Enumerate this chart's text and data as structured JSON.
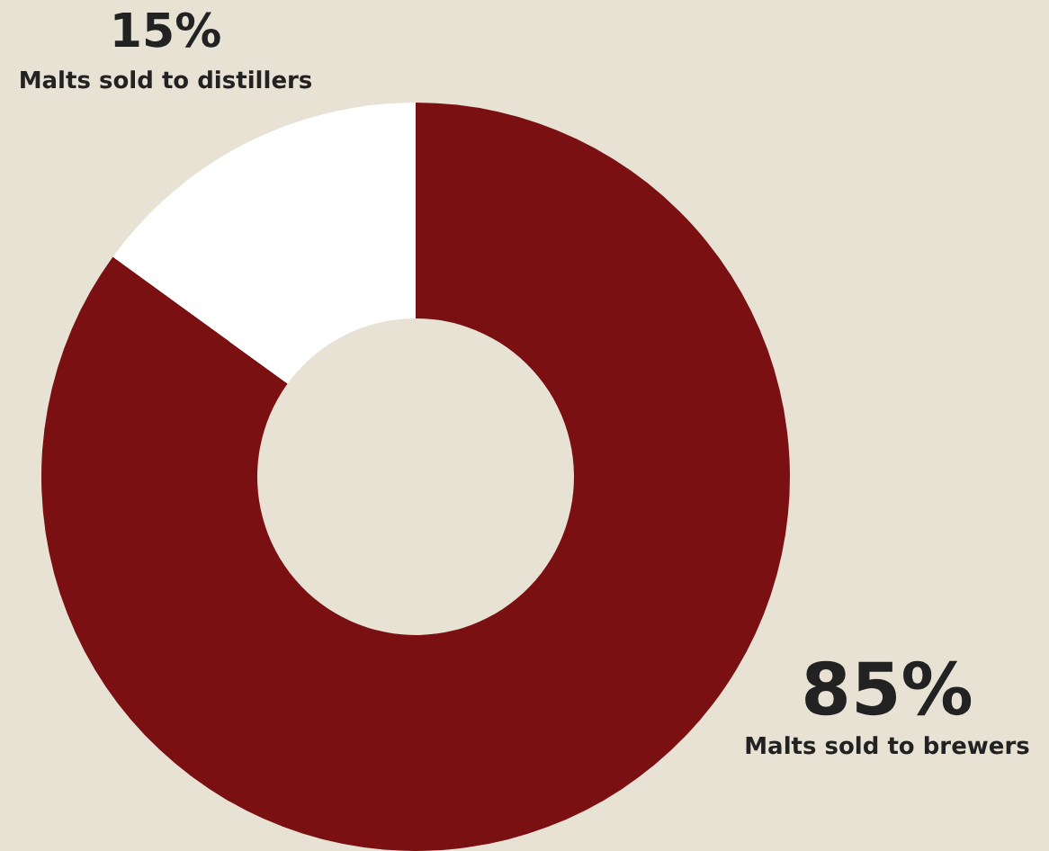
{
  "chart_data": {
    "type": "donut",
    "categories": [
      "Malts sold to brewers",
      "Malts sold to distillers"
    ],
    "values": [
      85,
      15
    ],
    "colors": [
      "#7a1012",
      "#ffffff"
    ],
    "value_labels": [
      "85%",
      "15%"
    ]
  }
}
